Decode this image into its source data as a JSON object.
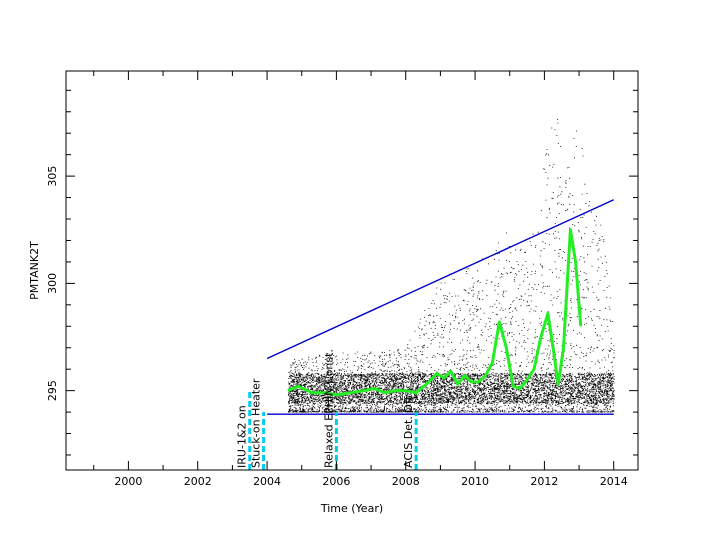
{
  "chart_data": {
    "type": "scatter",
    "title": "",
    "xlabel": "Time (Year)",
    "ylabel": "PMTANK2T",
    "xlim": [
      1998.2,
      2014.7
    ],
    "ylim": [
      291.3,
      309.9
    ],
    "x_ticks": [
      2000,
      2002,
      2004,
      2006,
      2008,
      2010,
      2012,
      2014
    ],
    "y_ticks": [
      295,
      300,
      305
    ],
    "grid": false,
    "colors": {
      "points": "#000000",
      "smooth": "#22ee22",
      "limits": "#0000cc",
      "events": "#00ccee"
    },
    "events": [
      {
        "x": 2003.5,
        "label": "IRU-1&2 on",
        "y_top": 295
      },
      {
        "x": 2003.9,
        "label": "Stuck-on Heater",
        "y_top": 294
      },
      {
        "x": 2006.0,
        "label": "Relaxed EPHIN Const.",
        "y_top": 294
      },
      {
        "x": 2008.3,
        "label": "ACIS Det. Off",
        "y_top": 294
      }
    ],
    "series": [
      {
        "kind": "smooth",
        "x": [
          2004.6,
          2004.9,
          2005.3,
          2005.7,
          2006.0,
          2006.4,
          2006.8,
          2007.1,
          2007.4,
          2007.7,
          2008.0,
          2008.3,
          2008.6,
          2008.9,
          2009.1,
          2009.3,
          2009.5,
          2009.7,
          2009.9,
          2010.1,
          2010.3,
          2010.5,
          2010.7,
          2010.9,
          2011.1,
          2011.3,
          2011.5,
          2011.7,
          2011.9,
          2012.1,
          2012.25,
          2012.4,
          2012.55,
          2012.75,
          2012.9,
          2013.05
        ],
        "y": [
          295.0,
          295.2,
          294.9,
          294.9,
          294.8,
          294.9,
          295.0,
          295.1,
          294.9,
          295.0,
          295.0,
          294.9,
          295.3,
          295.8,
          295.6,
          295.9,
          295.3,
          295.7,
          295.4,
          295.4,
          295.7,
          296.3,
          298.2,
          297.0,
          295.2,
          295.1,
          295.5,
          296.0,
          297.5,
          298.6,
          297.0,
          295.3,
          297.0,
          302.5,
          301.0,
          298.0
        ]
      }
    ],
    "limit_lines": [
      {
        "name": "upper",
        "x": [
          2004.0,
          2014.0
        ],
        "y": [
          296.5,
          303.9
        ]
      },
      {
        "name": "lower",
        "x": [
          2004.0,
          2014.0
        ],
        "y": [
          293.9,
          293.9
        ]
      }
    ],
    "scatter_envelope": {
      "x": [
        2004.6,
        2005.0,
        2006.0,
        2007.0,
        2008.0,
        2008.6,
        2009.0,
        2009.5,
        2010.0,
        2010.5,
        2010.9,
        2011.2,
        2011.6,
        2012.0,
        2012.3,
        2012.6,
        2012.8,
        2013.0,
        2013.3,
        2013.7,
        2014.0
      ],
      "y_min": [
        294.0,
        294.0,
        294.0,
        294.0,
        294.0,
        294.0,
        294.0,
        294.0,
        294.0,
        294.0,
        294.0,
        294.0,
        294.0,
        294.0,
        294.0,
        294.0,
        294.0,
        294.0,
        294.0,
        294.0,
        294.0
      ],
      "y_max": [
        296.5,
        296.5,
        296.8,
        296.8,
        297.0,
        299.0,
        300.5,
        300.5,
        301.0,
        301.5,
        303.0,
        301.5,
        302.0,
        306.0,
        308.5,
        305.0,
        307.5,
        308.0,
        304.0,
        302.5,
        298.0
      ]
    }
  }
}
